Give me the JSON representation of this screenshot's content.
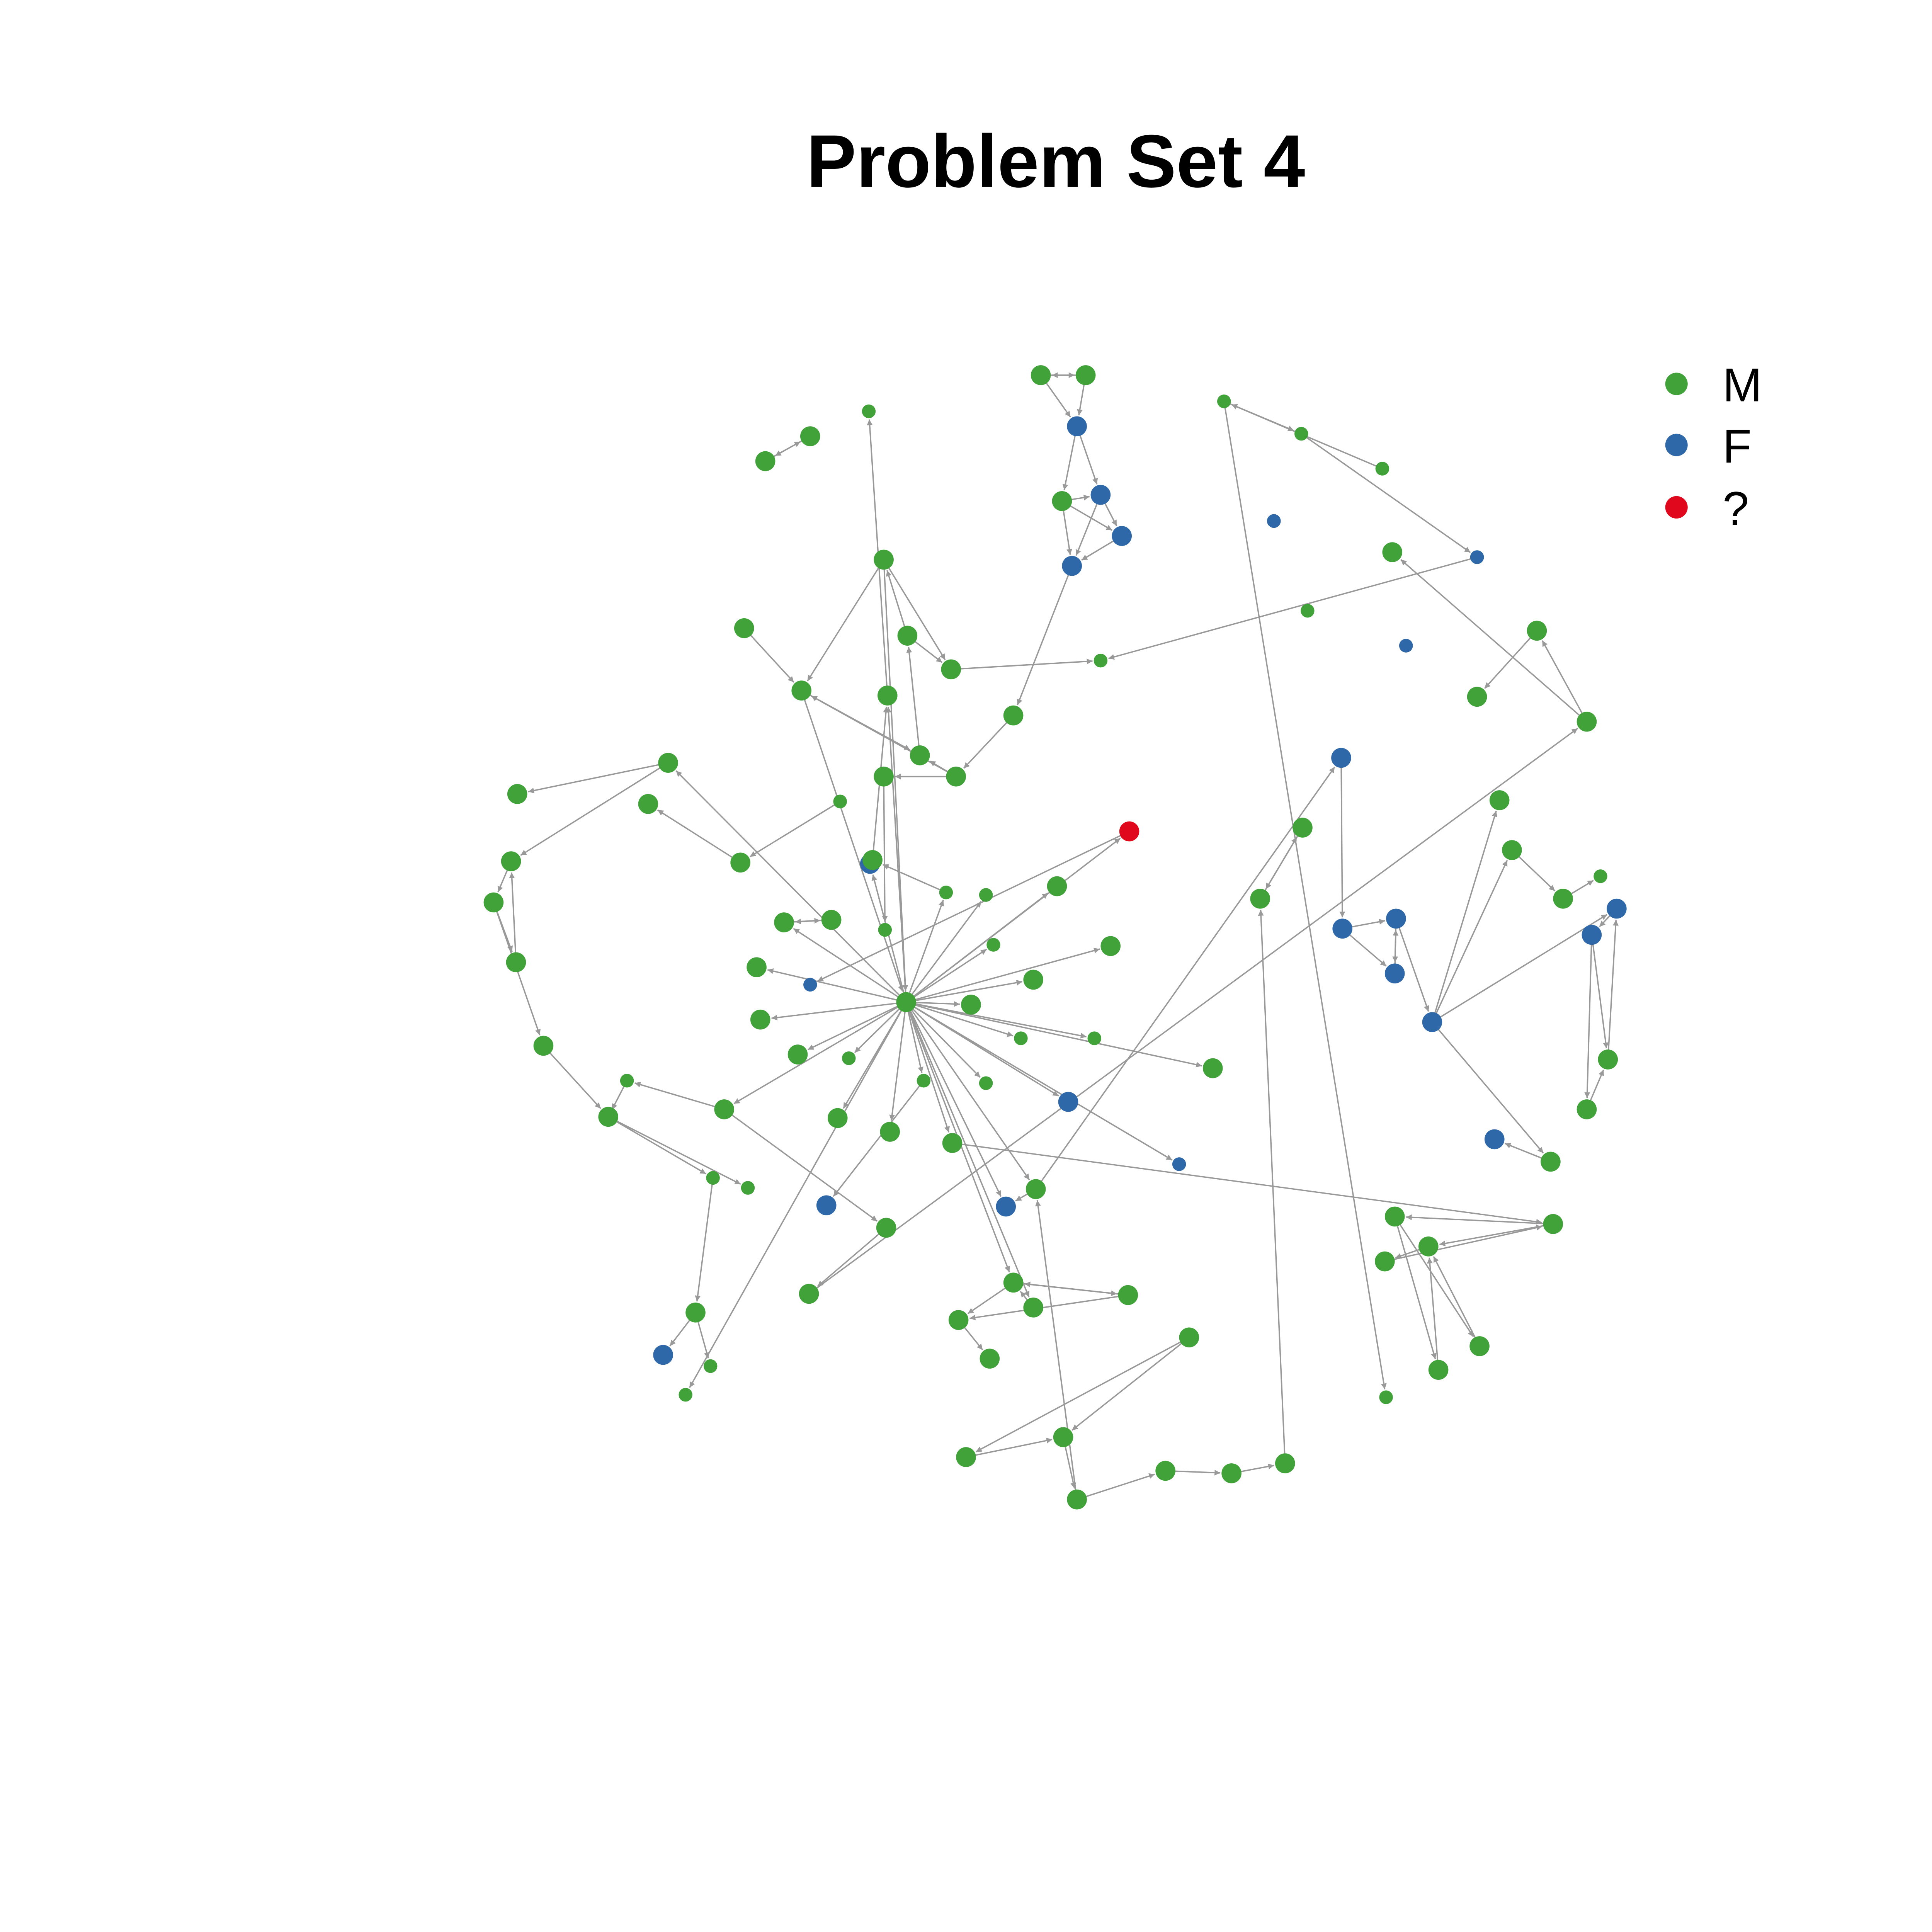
{
  "title": "Problem Set 4",
  "legend": [
    {
      "label": "M",
      "color": "#41a23a"
    },
    {
      "label": "F",
      "color": "#2f68a8"
    },
    {
      "label": "?",
      "color": "#e0081c"
    }
  ],
  "edge_color": "#999999",
  "network": {
    "nodes": [
      {
        "id": "n01",
        "group": "M",
        "s": "big"
      },
      {
        "id": "n02",
        "group": "M",
        "s": "big"
      },
      {
        "id": "n03",
        "group": "F",
        "s": "big"
      },
      {
        "id": "n04",
        "group": "M",
        "s": "big"
      },
      {
        "id": "n05",
        "group": "F",
        "s": "big"
      },
      {
        "id": "n06",
        "group": "F",
        "s": "big"
      },
      {
        "id": "n07",
        "group": "F",
        "s": "big"
      },
      {
        "id": "n08",
        "group": "M",
        "s": "big"
      },
      {
        "id": "n09",
        "group": "M",
        "s": "big"
      },
      {
        "id": "n10",
        "group": "M",
        "s": "big"
      },
      {
        "id": "n11",
        "group": "M",
        "s": "small"
      },
      {
        "id": "n12",
        "group": "M",
        "s": "big"
      },
      {
        "id": "n13",
        "group": "M",
        "s": "big"
      },
      {
        "id": "n14",
        "group": "M",
        "s": "big"
      },
      {
        "id": "n15",
        "group": "M",
        "s": "big"
      },
      {
        "id": "n16",
        "group": "M",
        "s": "big"
      },
      {
        "id": "n17",
        "group": "M",
        "s": "big"
      },
      {
        "id": "n18",
        "group": "M",
        "s": "small"
      },
      {
        "id": "n19",
        "group": "M",
        "s": "big"
      },
      {
        "id": "n20",
        "group": "M",
        "s": "big"
      },
      {
        "id": "n21",
        "group": "M",
        "s": "small"
      },
      {
        "id": "n22",
        "group": "M",
        "s": "big"
      },
      {
        "id": "n23",
        "group": "M",
        "s": "big"
      },
      {
        "id": "n24",
        "group": "M",
        "s": "small"
      },
      {
        "id": "n25",
        "group": "M",
        "s": "big"
      },
      {
        "id": "n26",
        "group": "M",
        "s": "big"
      },
      {
        "id": "n27",
        "group": "M",
        "s": "big"
      },
      {
        "id": "n28",
        "group": "M",
        "s": "big"
      },
      {
        "id": "n29",
        "group": "M",
        "s": "big"
      },
      {
        "id": "n30",
        "group": "M",
        "s": "big"
      },
      {
        "id": "n31",
        "group": "M",
        "s": "big"
      },
      {
        "id": "n32",
        "group": "M",
        "s": "big"
      },
      {
        "id": "n33",
        "group": "M",
        "s": "big"
      },
      {
        "id": "n34",
        "group": "M",
        "s": "small"
      },
      {
        "id": "n35",
        "group": "M",
        "s": "big"
      },
      {
        "id": "n36",
        "group": "F",
        "s": "big"
      },
      {
        "id": "n37",
        "group": "M",
        "s": "small"
      },
      {
        "id": "n38",
        "group": "M",
        "s": "small"
      },
      {
        "id": "n39",
        "group": "M",
        "s": "big"
      },
      {
        "id": "n40",
        "group": "M",
        "s": "big"
      },
      {
        "id": "n41",
        "group": "M",
        "s": "big"
      },
      {
        "id": "n42",
        "group": "F",
        "s": "big"
      },
      {
        "id": "n43",
        "group": "M",
        "s": "small"
      },
      {
        "id": "n44",
        "group": "M",
        "s": "big"
      },
      {
        "id": "n45",
        "group": "?",
        "s": "big"
      },
      {
        "id": "n46",
        "group": "F",
        "s": "small"
      },
      {
        "id": "n47",
        "group": "M",
        "s": "small"
      },
      {
        "id": "n48",
        "group": "M",
        "s": "small"
      },
      {
        "id": "n49",
        "group": "M",
        "s": "big"
      },
      {
        "id": "n50",
        "group": "M",
        "s": "big"
      },
      {
        "id": "n51",
        "group": "M",
        "s": "big"
      },
      {
        "id": "n52",
        "group": "M",
        "s": "small"
      },
      {
        "id": "n53",
        "group": "M",
        "s": "big"
      },
      {
        "id": "n54",
        "group": "M",
        "s": "big"
      },
      {
        "id": "n55",
        "group": "M",
        "s": "small"
      },
      {
        "id": "n56",
        "group": "M",
        "s": "small"
      },
      {
        "id": "n57",
        "group": "M",
        "s": "small"
      },
      {
        "id": "n58",
        "group": "F",
        "s": "big"
      },
      {
        "id": "n59",
        "group": "M",
        "s": "big"
      },
      {
        "id": "n60",
        "group": "F",
        "s": "small"
      },
      {
        "id": "n61",
        "group": "M",
        "s": "big"
      },
      {
        "id": "n62",
        "group": "M",
        "s": "big"
      },
      {
        "id": "n63",
        "group": "M",
        "s": "big"
      },
      {
        "id": "n64",
        "group": "M",
        "s": "big"
      },
      {
        "id": "n65",
        "group": "F",
        "s": "big"
      },
      {
        "id": "n66",
        "group": "M",
        "s": "big"
      },
      {
        "id": "n67",
        "group": "M",
        "s": "big"
      },
      {
        "id": "n68",
        "group": "M",
        "s": "big"
      },
      {
        "id": "n69",
        "group": "M",
        "s": "big"
      },
      {
        "id": "n70",
        "group": "M",
        "s": "big"
      },
      {
        "id": "n71",
        "group": "M",
        "s": "big"
      },
      {
        "id": "n72",
        "group": "M",
        "s": "big"
      },
      {
        "id": "n73",
        "group": "M",
        "s": "big"
      },
      {
        "id": "n74",
        "group": "M",
        "s": "big"
      },
      {
        "id": "n75",
        "group": "M",
        "s": "big"
      },
      {
        "id": "n76",
        "group": "M",
        "s": "big"
      },
      {
        "id": "n77",
        "group": "M",
        "s": "big"
      },
      {
        "id": "n78",
        "group": "M",
        "s": "big"
      },
      {
        "id": "n79",
        "group": "M",
        "s": "big"
      },
      {
        "id": "n80",
        "group": "F",
        "s": "big"
      },
      {
        "id": "n81",
        "group": "F",
        "s": "big"
      },
      {
        "id": "n82",
        "group": "F",
        "s": "big"
      },
      {
        "id": "n83",
        "group": "F",
        "s": "big"
      },
      {
        "id": "n84",
        "group": "F",
        "s": "big"
      },
      {
        "id": "n85",
        "group": "M",
        "s": "big"
      },
      {
        "id": "n86",
        "group": "M",
        "s": "big"
      },
      {
        "id": "n87",
        "group": "M",
        "s": "big"
      },
      {
        "id": "n88",
        "group": "M",
        "s": "small"
      },
      {
        "id": "n89",
        "group": "F",
        "s": "big"
      },
      {
        "id": "n90",
        "group": "F",
        "s": "big"
      },
      {
        "id": "n91",
        "group": "M",
        "s": "big"
      },
      {
        "id": "n92",
        "group": "M",
        "s": "big"
      },
      {
        "id": "n93",
        "group": "M",
        "s": "big"
      },
      {
        "id": "n94",
        "group": "F",
        "s": "big"
      },
      {
        "id": "n95",
        "group": "M",
        "s": "big"
      },
      {
        "id": "n96",
        "group": "M",
        "s": "big"
      },
      {
        "id": "n97",
        "group": "M",
        "s": "big"
      },
      {
        "id": "n98",
        "group": "M",
        "s": "big"
      },
      {
        "id": "n99",
        "group": "M",
        "s": "big"
      },
      {
        "id": "n100",
        "group": "M",
        "s": "big"
      },
      {
        "id": "n101",
        "group": "F",
        "s": "big"
      },
      {
        "id": "n102",
        "group": "M",
        "s": "big"
      },
      {
        "id": "n103",
        "group": "M",
        "s": "small"
      },
      {
        "id": "n104",
        "group": "M",
        "s": "small"
      },
      {
        "id": "n105",
        "group": "M",
        "s": "small"
      },
      {
        "id": "n106",
        "group": "M",
        "s": "big"
      },
      {
        "id": "n107",
        "group": "M",
        "s": "big"
      },
      {
        "id": "n108",
        "group": "M",
        "s": "big"
      },
      {
        "id": "n109",
        "group": "M",
        "s": "big"
      },
      {
        "id": "n110",
        "group": "M",
        "s": "big"
      },
      {
        "id": "n111",
        "group": "M",
        "s": "big"
      },
      {
        "id": "n112",
        "group": "M",
        "s": "small"
      },
      {
        "id": "n113",
        "group": "M",
        "s": "small"
      },
      {
        "id": "n114",
        "group": "M",
        "s": "small"
      },
      {
        "id": "n115",
        "group": "M",
        "s": "small"
      },
      {
        "id": "n116",
        "group": "M",
        "s": "tiny"
      },
      {
        "id": "n117",
        "group": "M",
        "s": "small"
      },
      {
        "id": "n118",
        "group": "F",
        "s": "small"
      },
      {
        "id": "n119",
        "group": "M",
        "s": "small"
      },
      {
        "id": "n120",
        "group": "F",
        "s": "small"
      },
      {
        "id": "n121",
        "group": "F",
        "s": "small"
      },
      {
        "id": "n122",
        "group": "F",
        "s": "small"
      },
      {
        "id": "n123",
        "group": "M",
        "s": "small"
      },
      {
        "id": "n124",
        "group": "M",
        "s": "small"
      },
      {
        "id": "n125",
        "group": "M",
        "s": "big"
      }
    ],
    "edges": [
      [
        "n01",
        "n02"
      ],
      [
        "n02",
        "n01"
      ],
      [
        "n01",
        "n03"
      ],
      [
        "n02",
        "n03"
      ],
      [
        "n03",
        "n04"
      ],
      [
        "n03",
        "n05"
      ],
      [
        "n04",
        "n05"
      ],
      [
        "n05",
        "n06"
      ],
      [
        "n04",
        "n06"
      ],
      [
        "n06",
        "n07"
      ],
      [
        "n04",
        "n07"
      ],
      [
        "n05",
        "n07"
      ],
      [
        "n07",
        "n08"
      ],
      [
        "n08",
        "n09"
      ],
      [
        "n09",
        "n10"
      ],
      [
        "n09",
        "n14"
      ],
      [
        "n10",
        "n11"
      ],
      [
        "n09",
        "n13"
      ],
      [
        "n12",
        "n13"
      ],
      [
        "n13",
        "n14"
      ],
      [
        "n14",
        "n15"
      ],
      [
        "n15",
        "n16"
      ],
      [
        "n16",
        "n13"
      ],
      [
        "n16",
        "n17"
      ],
      [
        "n15",
        "n17"
      ],
      [
        "n13",
        "n19"
      ],
      [
        "n16",
        "n19"
      ],
      [
        "n17",
        "n18"
      ],
      [
        "n19",
        "n20"
      ],
      [
        "n20",
        "n21"
      ],
      [
        "n22",
        "n23"
      ],
      [
        "n23",
        "n22"
      ],
      [
        "n24",
        "n25"
      ],
      [
        "n25",
        "n26"
      ],
      [
        "n19",
        "n27"
      ],
      [
        "n27",
        "n28"
      ],
      [
        "n27",
        "n29"
      ],
      [
        "n29",
        "n30"
      ],
      [
        "n30",
        "n31"
      ],
      [
        "n31",
        "n29"
      ],
      [
        "n30",
        "n32"
      ],
      [
        "n32",
        "n33"
      ],
      [
        "n33",
        "n34"
      ],
      [
        "n34",
        "n35"
      ],
      [
        "n35",
        "n36"
      ],
      [
        "n35",
        "n37"
      ],
      [
        "n19",
        "n38"
      ],
      [
        "n19",
        "n39"
      ],
      [
        "n19",
        "n40"
      ],
      [
        "n40",
        "n41"
      ],
      [
        "n41",
        "n40"
      ],
      [
        "n19",
        "n42"
      ],
      [
        "n19",
        "n43"
      ],
      [
        "n19",
        "n44"
      ],
      [
        "n19",
        "n45"
      ],
      [
        "n45",
        "n46"
      ],
      [
        "n19",
        "n47"
      ],
      [
        "n19",
        "n48"
      ],
      [
        "n19",
        "n49"
      ],
      [
        "n19",
        "n50"
      ],
      [
        "n19",
        "n51"
      ],
      [
        "n19",
        "n52"
      ],
      [
        "n19",
        "n53"
      ],
      [
        "n19",
        "n54"
      ],
      [
        "n19",
        "n55"
      ],
      [
        "n19",
        "n56"
      ],
      [
        "n19",
        "n57"
      ],
      [
        "n19",
        "n58"
      ],
      [
        "n19",
        "n59"
      ],
      [
        "n19",
        "n60"
      ],
      [
        "n19",
        "n61"
      ],
      [
        "n19",
        "n62"
      ],
      [
        "n19",
        "n63"
      ],
      [
        "n19",
        "n64"
      ],
      [
        "n19",
        "n65"
      ],
      [
        "n19",
        "n66"
      ],
      [
        "n19",
        "n67"
      ],
      [
        "n67",
        "n66"
      ],
      [
        "n66",
        "n68"
      ],
      [
        "n68",
        "n69"
      ],
      [
        "n66",
        "n70"
      ],
      [
        "n70",
        "n66"
      ],
      [
        "n70",
        "n68"
      ],
      [
        "n71",
        "n72"
      ],
      [
        "n72",
        "n73"
      ],
      [
        "n71",
        "n73"
      ],
      [
        "n73",
        "n74"
      ],
      [
        "n74",
        "n75"
      ],
      [
        "n75",
        "n76"
      ],
      [
        "n76",
        "n77"
      ],
      [
        "n77",
        "n78"
      ],
      [
        "n78",
        "n79"
      ],
      [
        "n79",
        "n78"
      ],
      [
        "n74",
        "n64"
      ],
      [
        "n64",
        "n65"
      ],
      [
        "n64",
        "n80"
      ],
      [
        "n80",
        "n81"
      ],
      [
        "n81",
        "n82"
      ],
      [
        "n82",
        "n83"
      ],
      [
        "n83",
        "n82"
      ],
      [
        "n81",
        "n83"
      ],
      [
        "n82",
        "n84"
      ],
      [
        "n84",
        "n85"
      ],
      [
        "n84",
        "n86"
      ],
      [
        "n86",
        "n87"
      ],
      [
        "n87",
        "n88"
      ],
      [
        "n84",
        "n89"
      ],
      [
        "n89",
        "n90"
      ],
      [
        "n90",
        "n91"
      ],
      [
        "n91",
        "n89"
      ],
      [
        "n90",
        "n92"
      ],
      [
        "n92",
        "n91"
      ],
      [
        "n84",
        "n93"
      ],
      [
        "n93",
        "n94"
      ],
      [
        "n63",
        "n95"
      ],
      [
        "n95",
        "n96"
      ],
      [
        "n95",
        "n97"
      ],
      [
        "n97",
        "n98"
      ],
      [
        "n98",
        "n95"
      ],
      [
        "n96",
        "n99"
      ],
      [
        "n96",
        "n100"
      ],
      [
        "n99",
        "n97"
      ],
      [
        "n100",
        "n97"
      ],
      [
        "n56",
        "n101"
      ],
      [
        "n19",
        "n102"
      ],
      [
        "n102",
        "n103"
      ],
      [
        "n103",
        "n104"
      ],
      [
        "n104",
        "n105"
      ],
      [
        "n102",
        "n106"
      ],
      [
        "n106",
        "n107"
      ],
      [
        "n107",
        "n108"
      ],
      [
        "n108",
        "n109"
      ],
      [
        "n109",
        "n110"
      ],
      [
        "n108",
        "n111"
      ],
      [
        "n112",
        "n113"
      ],
      [
        "n113",
        "n114"
      ],
      [
        "n113",
        "n115"
      ],
      [
        "n116",
        "n117"
      ],
      [
        "n117",
        "n18"
      ],
      [
        "n19",
        "n124"
      ],
      [
        "n124",
        "n125"
      ],
      [
        "n125",
        "n20"
      ]
    ]
  }
}
